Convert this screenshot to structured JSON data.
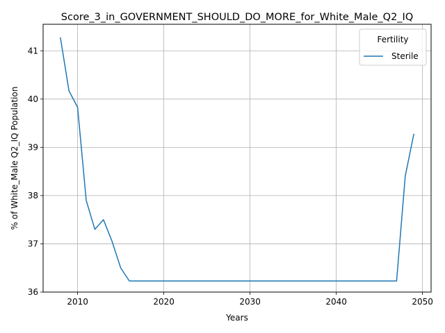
{
  "chart_data": {
    "type": "line",
    "title": "Score_3_in_GOVERNMENT_SHOULD_DO_MORE_for_White_Male_Q2_IQ",
    "xlabel": "Years",
    "ylabel": "% of White_Male Q2_IQ Population",
    "xlim": [
      2006,
      2051
    ],
    "ylim": [
      36.0,
      41.55
    ],
    "xticks": [
      2010,
      2020,
      2030,
      2040,
      2050
    ],
    "yticks": [
      36,
      37,
      38,
      39,
      40,
      41
    ],
    "grid": true,
    "legend": {
      "title": "Fertility",
      "position": "top-right"
    },
    "series": [
      {
        "name": "Sterile",
        "color": "#1f77b4",
        "x": [
          2008,
          2009,
          2010,
          2011,
          2012,
          2013,
          2014,
          2015,
          2016,
          2017,
          2018,
          2019,
          2020,
          2021,
          2022,
          2023,
          2024,
          2025,
          2026,
          2027,
          2028,
          2029,
          2030,
          2031,
          2032,
          2033,
          2034,
          2035,
          2036,
          2037,
          2038,
          2039,
          2040,
          2041,
          2042,
          2043,
          2044,
          2045,
          2046,
          2047,
          2048,
          2049
        ],
        "y": [
          41.28,
          40.17,
          39.83,
          37.9,
          37.3,
          37.5,
          37.05,
          36.5,
          36.23,
          36.23,
          36.23,
          36.23,
          36.23,
          36.23,
          36.23,
          36.23,
          36.23,
          36.23,
          36.23,
          36.23,
          36.23,
          36.23,
          36.23,
          36.23,
          36.23,
          36.23,
          36.23,
          36.23,
          36.23,
          36.23,
          36.23,
          36.23,
          36.23,
          36.23,
          36.23,
          36.23,
          36.23,
          36.23,
          36.23,
          36.23,
          38.4,
          39.28
        ]
      }
    ]
  }
}
